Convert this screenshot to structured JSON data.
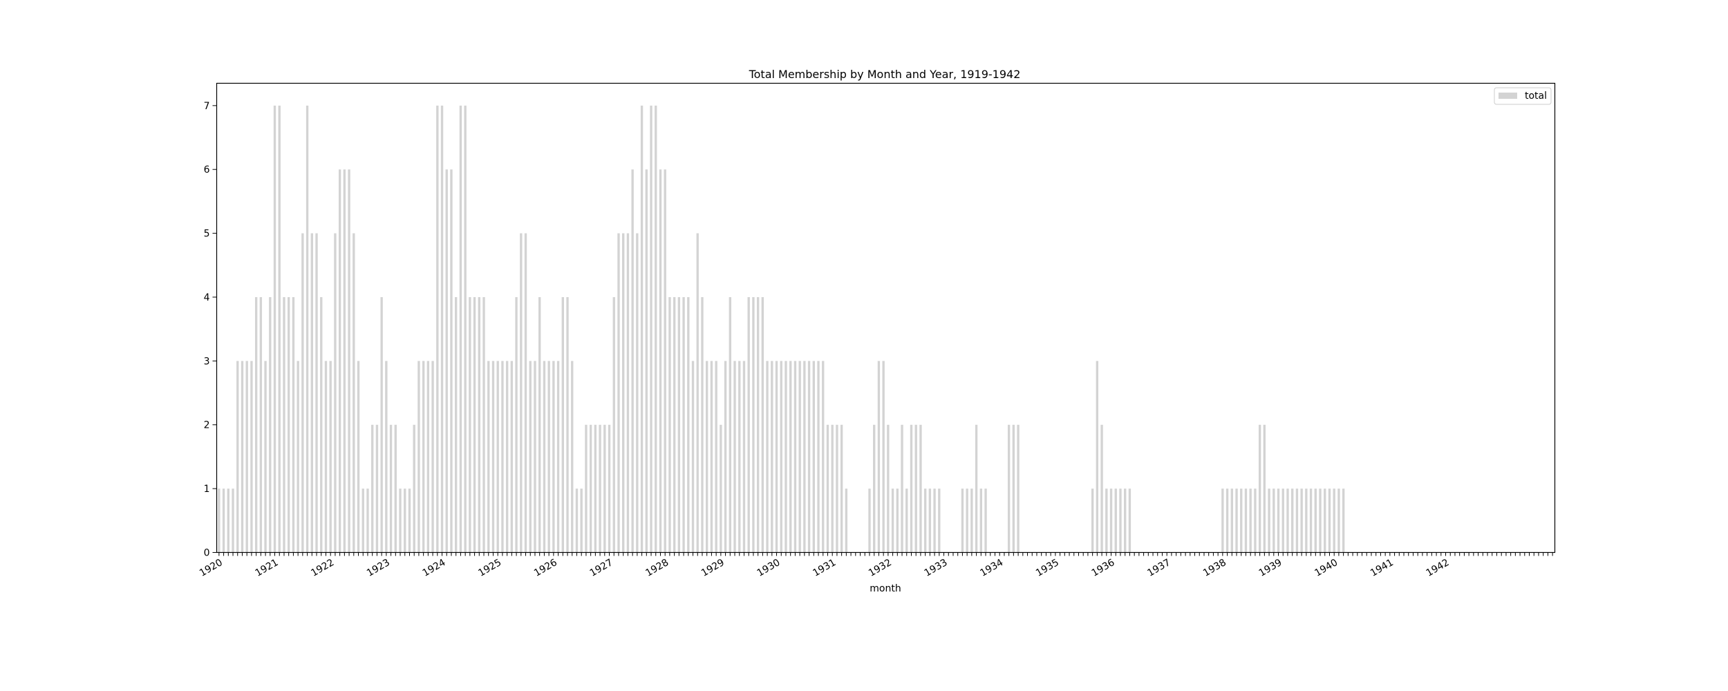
{
  "chart_data": {
    "type": "bar",
    "title": "Total Membership by Month and Year, 1919-1942",
    "xlabel": "month",
    "ylabel": "",
    "ylim": [
      0,
      7.35
    ],
    "yticks": [
      0,
      1,
      2,
      3,
      4,
      5,
      6,
      7
    ],
    "x_tick_labels": [
      "1920",
      "1921",
      "1922",
      "1923",
      "1924",
      "1925",
      "1926",
      "1927",
      "1928",
      "1929",
      "1930",
      "1931",
      "1932",
      "1933",
      "1934",
      "1935",
      "1936",
      "1937",
      "1938",
      "1939",
      "1940",
      "1941",
      "1942"
    ],
    "legend": {
      "label": "total",
      "position": "upper-right"
    },
    "bar_color": "#d3d3d3",
    "series": [
      {
        "name": "total",
        "start": "1920-01",
        "values": [
          1,
          1,
          1,
          1,
          3,
          3,
          3,
          3,
          4,
          4,
          3,
          4,
          7,
          7,
          4,
          4,
          4,
          3,
          5,
          7,
          5,
          5,
          4,
          3,
          3,
          5,
          6,
          6,
          6,
          5,
          3,
          1,
          1,
          2,
          2,
          4,
          3,
          2,
          2,
          1,
          1,
          1,
          2,
          3,
          3,
          3,
          3,
          7,
          7,
          6,
          6,
          4,
          7,
          7,
          4,
          4,
          4,
          4,
          3,
          3,
          3,
          3,
          3,
          3,
          4,
          5,
          5,
          3,
          3,
          4,
          3,
          3,
          3,
          3,
          4,
          4,
          3,
          1,
          1,
          2,
          2,
          2,
          2,
          2,
          2,
          4,
          5,
          5,
          5,
          6,
          5,
          7,
          6,
          7,
          7,
          6,
          6,
          4,
          4,
          4,
          4,
          4,
          3,
          5,
          4,
          3,
          3,
          3,
          2,
          3,
          4,
          3,
          3,
          3,
          4,
          4,
          4,
          4,
          3,
          3,
          3,
          3,
          3,
          3,
          3,
          3,
          3,
          3,
          3,
          3,
          3,
          2,
          2,
          2,
          2,
          1,
          0,
          0,
          0,
          0,
          1,
          2,
          3,
          3,
          2,
          1,
          1,
          2,
          1,
          2,
          2,
          2,
          1,
          1,
          1,
          1,
          0,
          0,
          0,
          0,
          1,
          1,
          1,
          2,
          1,
          1,
          0,
          0,
          0,
          0,
          2,
          2,
          2,
          0,
          0,
          0,
          0,
          0,
          0,
          0,
          0,
          0,
          0,
          0,
          0,
          0,
          0,
          0,
          1,
          3,
          2,
          1,
          1,
          1,
          1,
          1,
          1,
          0,
          0,
          0,
          0,
          0,
          0,
          0,
          0,
          0,
          0,
          0,
          0,
          0,
          0,
          0,
          0,
          0,
          0,
          0,
          1,
          1,
          1,
          1,
          1,
          1,
          1,
          1,
          2,
          2,
          1,
          1,
          1,
          1,
          1,
          1,
          1,
          1,
          1,
          1,
          1,
          1,
          1,
          1,
          1,
          1,
          1,
          0,
          0,
          0,
          0,
          0,
          0,
          0,
          0,
          0,
          0,
          0,
          0,
          0,
          0,
          0,
          0,
          0,
          0,
          0,
          0,
          0,
          0,
          0,
          0,
          0,
          0,
          0,
          0,
          0,
          0,
          0,
          0,
          0,
          0,
          0,
          0,
          0,
          0,
          0,
          0,
          0,
          0,
          0,
          0,
          0
        ]
      }
    ]
  }
}
